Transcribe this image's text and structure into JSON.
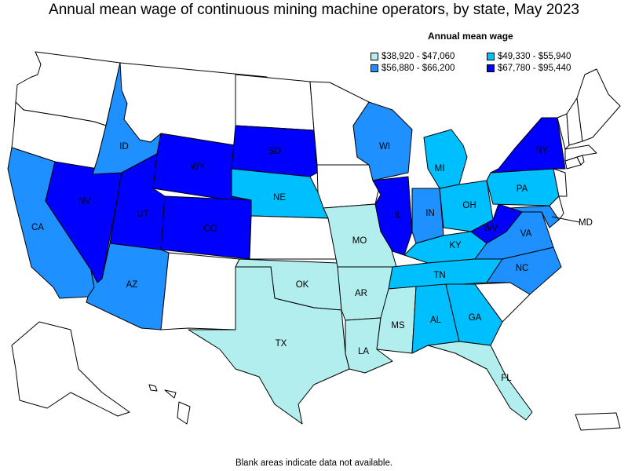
{
  "title": "Annual mean wage of continuous mining machine operators, by state, May 2023",
  "legend": {
    "title": "Annual mean wage",
    "items": [
      {
        "label": "$38,920 - $47,060",
        "color": "#b2eeee"
      },
      {
        "label": "$49,330 - $55,940",
        "color": "#00bfff"
      },
      {
        "label": "$56,880 - $66,200",
        "color": "#1e90ff"
      },
      {
        "label": "$67,780 - $95,440",
        "color": "#0000ff"
      }
    ]
  },
  "note": "Blank areas indicate data not available.",
  "no_data_color": "#ffffff",
  "states": [
    {
      "abbr": "WA",
      "label": "",
      "bin": -1
    },
    {
      "abbr": "OR",
      "label": "",
      "bin": -1
    },
    {
      "abbr": "CA",
      "label": "CA",
      "bin": 2
    },
    {
      "abbr": "NV",
      "label": "NV",
      "bin": 3
    },
    {
      "abbr": "ID",
      "label": "ID",
      "bin": 2
    },
    {
      "abbr": "MT",
      "label": "",
      "bin": -1
    },
    {
      "abbr": "WY",
      "label": "WY",
      "bin": 3
    },
    {
      "abbr": "UT",
      "label": "UT",
      "bin": 3
    },
    {
      "abbr": "AZ",
      "label": "AZ",
      "bin": 2
    },
    {
      "abbr": "CO",
      "label": "CO",
      "bin": 3
    },
    {
      "abbr": "NM",
      "label": "",
      "bin": -1
    },
    {
      "abbr": "ND",
      "label": "",
      "bin": -1
    },
    {
      "abbr": "SD",
      "label": "SD",
      "bin": 3
    },
    {
      "abbr": "NE",
      "label": "NE",
      "bin": 1
    },
    {
      "abbr": "KS",
      "label": "",
      "bin": -1
    },
    {
      "abbr": "OK",
      "label": "OK",
      "bin": 0
    },
    {
      "abbr": "TX",
      "label": "TX",
      "bin": 0
    },
    {
      "abbr": "MN",
      "label": "",
      "bin": -1
    },
    {
      "abbr": "IA",
      "label": "",
      "bin": -1
    },
    {
      "abbr": "MO",
      "label": "MO",
      "bin": 0
    },
    {
      "abbr": "AR",
      "label": "AR",
      "bin": 0
    },
    {
      "abbr": "LA",
      "label": "LA",
      "bin": 0
    },
    {
      "abbr": "WI",
      "label": "WI",
      "bin": 2
    },
    {
      "abbr": "IL",
      "label": "IL",
      "bin": 3
    },
    {
      "abbr": "MI",
      "label": "MI",
      "bin": 1
    },
    {
      "abbr": "IN",
      "label": "IN",
      "bin": 2
    },
    {
      "abbr": "OH",
      "label": "OH",
      "bin": 1
    },
    {
      "abbr": "KY",
      "label": "KY",
      "bin": 1
    },
    {
      "abbr": "TN",
      "label": "TN",
      "bin": 1
    },
    {
      "abbr": "MS",
      "label": "MS",
      "bin": 0
    },
    {
      "abbr": "AL",
      "label": "AL",
      "bin": 1
    },
    {
      "abbr": "GA",
      "label": "GA",
      "bin": 1
    },
    {
      "abbr": "FL",
      "label": "FL",
      "bin": 0
    },
    {
      "abbr": "SC",
      "label": "",
      "bin": -1
    },
    {
      "abbr": "NC",
      "label": "NC",
      "bin": 2
    },
    {
      "abbr": "VA",
      "label": "VA",
      "bin": 2
    },
    {
      "abbr": "WV",
      "label": "WV",
      "bin": 3
    },
    {
      "abbr": "PA",
      "label": "PA",
      "bin": 1
    },
    {
      "abbr": "NY",
      "label": "NY",
      "bin": 3
    },
    {
      "abbr": "MD",
      "label": "MD",
      "bin": 2
    },
    {
      "abbr": "DE",
      "label": "",
      "bin": -1
    },
    {
      "abbr": "NJ",
      "label": "",
      "bin": -1
    },
    {
      "abbr": "CT",
      "label": "",
      "bin": -1
    },
    {
      "abbr": "RI",
      "label": "",
      "bin": -1
    },
    {
      "abbr": "MA",
      "label": "",
      "bin": -1
    },
    {
      "abbr": "VT",
      "label": "",
      "bin": -1
    },
    {
      "abbr": "NH",
      "label": "",
      "bin": -1
    },
    {
      "abbr": "ME",
      "label": "",
      "bin": -1
    },
    {
      "abbr": "AK",
      "label": "",
      "bin": -1
    },
    {
      "abbr": "HI",
      "label": "",
      "bin": -1
    },
    {
      "abbr": "PR",
      "label": "",
      "bin": -1
    }
  ]
}
